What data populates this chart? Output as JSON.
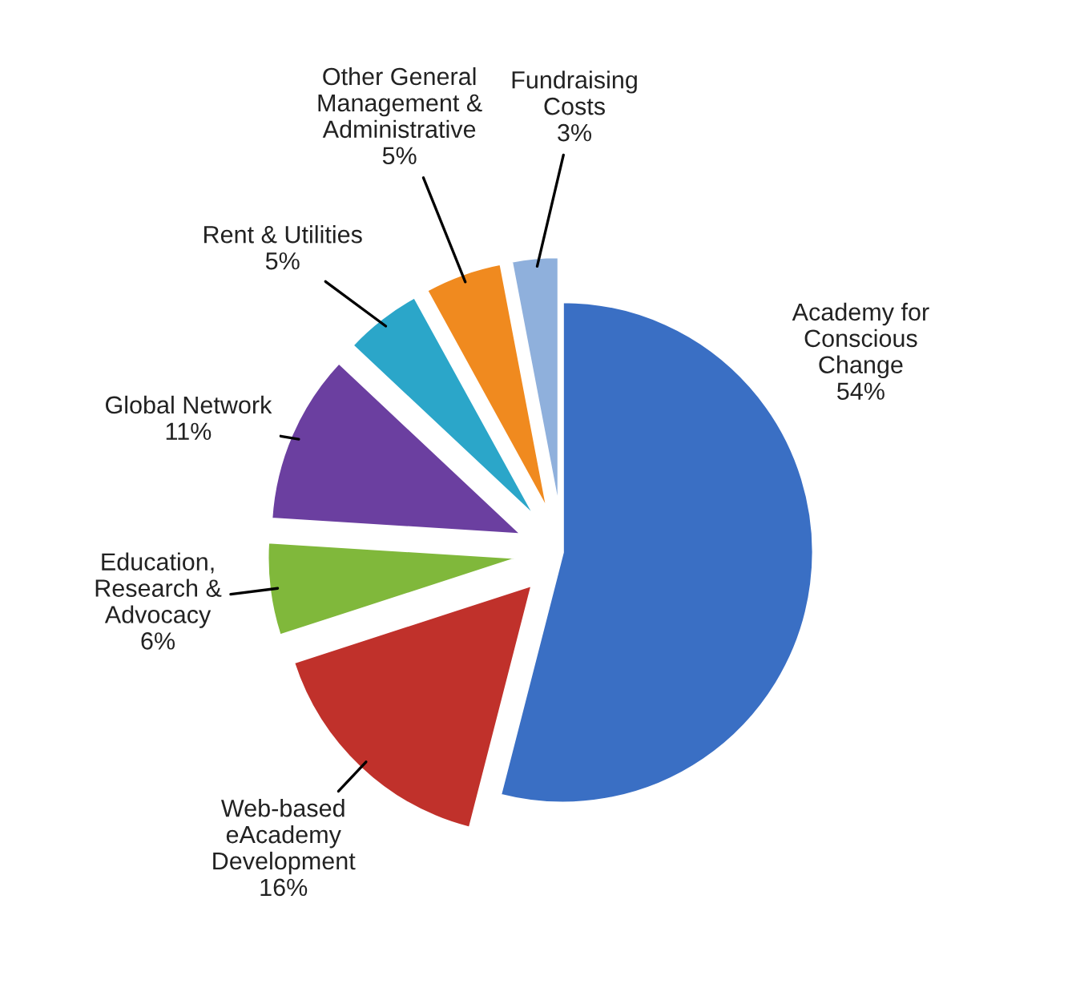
{
  "chart_data": {
    "type": "pie",
    "categories": [
      "Academy for\nConscious\nChange",
      "Web-based\neAcademy\nDevelopment",
      "Education,\nResearch &\nAdvocacy",
      "Global Network",
      "Rent & Utilities",
      "Other General\nManagement &\nAdministrative",
      "Fundraising\nCosts"
    ],
    "values": [
      54,
      16,
      6,
      11,
      5,
      5,
      3
    ],
    "value_labels": [
      "54%",
      "16%",
      "6%",
      "11%",
      "5%",
      "5%",
      "3%"
    ],
    "colors": [
      "#3a6fc4",
      "#c0312b",
      "#80b83b",
      "#6b3fa0",
      "#2ba6c9",
      "#f08a1f",
      "#8fb0dc"
    ],
    "legend": false
  }
}
